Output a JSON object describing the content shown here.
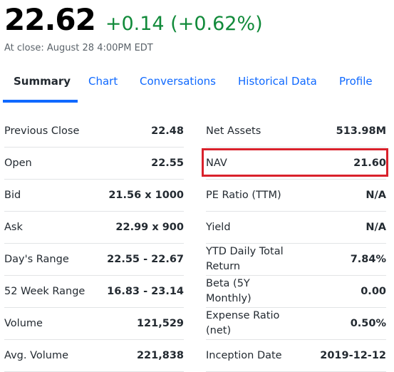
{
  "quote": {
    "price": "22.62",
    "change": "+0.14 (+0.62%)",
    "close_time": "At close: August 28 4:00PM EDT"
  },
  "tabs": [
    "Summary",
    "Chart",
    "Conversations",
    "Historical Data",
    "Profile"
  ],
  "left_stats": [
    {
      "label": "Previous Close",
      "value": "22.48"
    },
    {
      "label": "Open",
      "value": "22.55"
    },
    {
      "label": "Bid",
      "value": "21.56 x 1000"
    },
    {
      "label": "Ask",
      "value": "22.99 x 900"
    },
    {
      "label": "Day's Range",
      "value": "22.55 - 22.67"
    },
    {
      "label": "52 Week Range",
      "value": "16.83 - 23.14"
    },
    {
      "label": "Volume",
      "value": "121,529"
    },
    {
      "label": "Avg. Volume",
      "value": "221,838"
    }
  ],
  "right_stats": [
    {
      "label": "Net Assets",
      "value": "513.98M"
    },
    {
      "label": "NAV",
      "value": "21.60"
    },
    {
      "label": "PE Ratio (TTM)",
      "value": "N/A"
    },
    {
      "label": "Yield",
      "value": "N/A"
    },
    {
      "label": "YTD Daily Total Return",
      "value": "7.84%"
    },
    {
      "label": "Beta (5Y Monthly)",
      "value": "0.00"
    },
    {
      "label": "Expense Ratio (net)",
      "value": "0.50%"
    },
    {
      "label": "Inception Date",
      "value": "2019-12-12"
    }
  ],
  "colors": {
    "positive": "#118a3a",
    "link": "#0f69ff",
    "highlight": "#d9212b"
  }
}
